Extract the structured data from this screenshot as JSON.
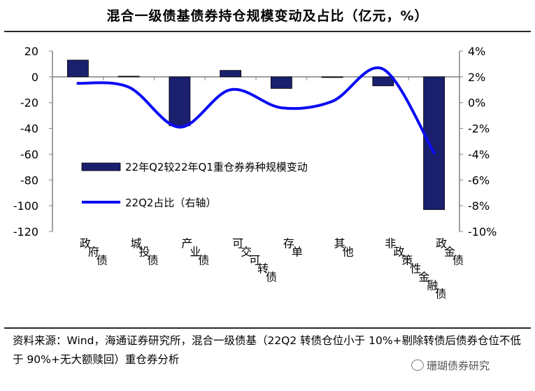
{
  "title": "混合一级债基债券持仓规模变动及占比（亿元，%）",
  "chart_data": {
    "type": "bar",
    "categories": [
      "政府债",
      "城投债",
      "产业债",
      "可交可转债",
      "存单",
      "其他",
      "非政策性金融债",
      "政金债"
    ],
    "series": [
      {
        "name": "22年Q2较22年Q1重仓券券种规模变动",
        "type": "bar",
        "axis": "left",
        "values": [
          13,
          0.5,
          -38,
          5,
          -9,
          0,
          -7,
          -103
        ]
      },
      {
        "name": "22Q2占比（右轴）",
        "type": "line",
        "axis": "right",
        "values": [
          1.5,
          1.2,
          -1.9,
          1.0,
          -0.4,
          0.1,
          2.6,
          -3.9
        ]
      }
    ],
    "ylim": [
      -120,
      20
    ],
    "y_ticks": [
      "20",
      "0",
      "-20",
      "-40",
      "-60",
      "-80",
      "-100",
      "-120"
    ],
    "y2lim": [
      -10,
      4
    ],
    "y2_ticks": [
      "4%",
      "2%",
      "0%",
      "-2%",
      "-4%",
      "-6%",
      "-8%",
      "-10%"
    ],
    "legend_position": "left-middle",
    "grid": false,
    "colors": {
      "bar": "#1a1f6e",
      "line": "#0c0cf5",
      "axis": "#808080"
    }
  },
  "source": "资料来源：Wind，海通证券研究所，混合一级债基（22Q2 转债仓位小于 10%+剔除转债后债券仓位不低于 90%+无大额赎回）重仓券分析",
  "watermark": "珊瑚债券研究"
}
